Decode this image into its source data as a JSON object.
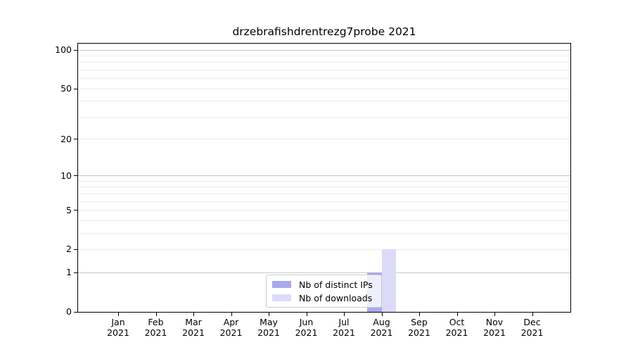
{
  "chart_data": {
    "type": "bar",
    "title": "drzebrafishdrentrezg7probe 2021",
    "x_axis": {
      "months": [
        "Jan",
        "Feb",
        "Mar",
        "Apr",
        "May",
        "Jun",
        "Jul",
        "Aug",
        "Sep",
        "Oct",
        "Nov",
        "Dec"
      ],
      "year": "2021"
    },
    "series": [
      {
        "name": "Nb of distinct IPs",
        "color": "#a9a9ed",
        "values": [
          0,
          0,
          0,
          0,
          0,
          0,
          0,
          1,
          0,
          0,
          0,
          0
        ]
      },
      {
        "name": "Nb of downloads",
        "color": "#dbdbf8",
        "values": [
          0,
          0,
          0,
          0,
          0,
          0,
          0,
          2,
          0,
          0,
          0,
          0
        ]
      }
    ],
    "y_axis": {
      "scale": "log1p",
      "ylim": [
        0,
        112
      ],
      "ticks": [
        0,
        1,
        2,
        5,
        10,
        20,
        50,
        100
      ],
      "major_gridlines": [
        1,
        10,
        100
      ],
      "minor_gridlines": [
        2,
        3,
        4,
        5,
        6,
        7,
        8,
        9,
        20,
        30,
        40,
        50,
        60,
        70,
        80,
        90
      ],
      "grid": true
    },
    "legend_position": "lower center",
    "style": {
      "major_grid_color": "#c7c7c7",
      "minor_grid_color": "#ebebeb",
      "axis_color": "#000000",
      "legend_border_color": "#cccccc"
    }
  }
}
